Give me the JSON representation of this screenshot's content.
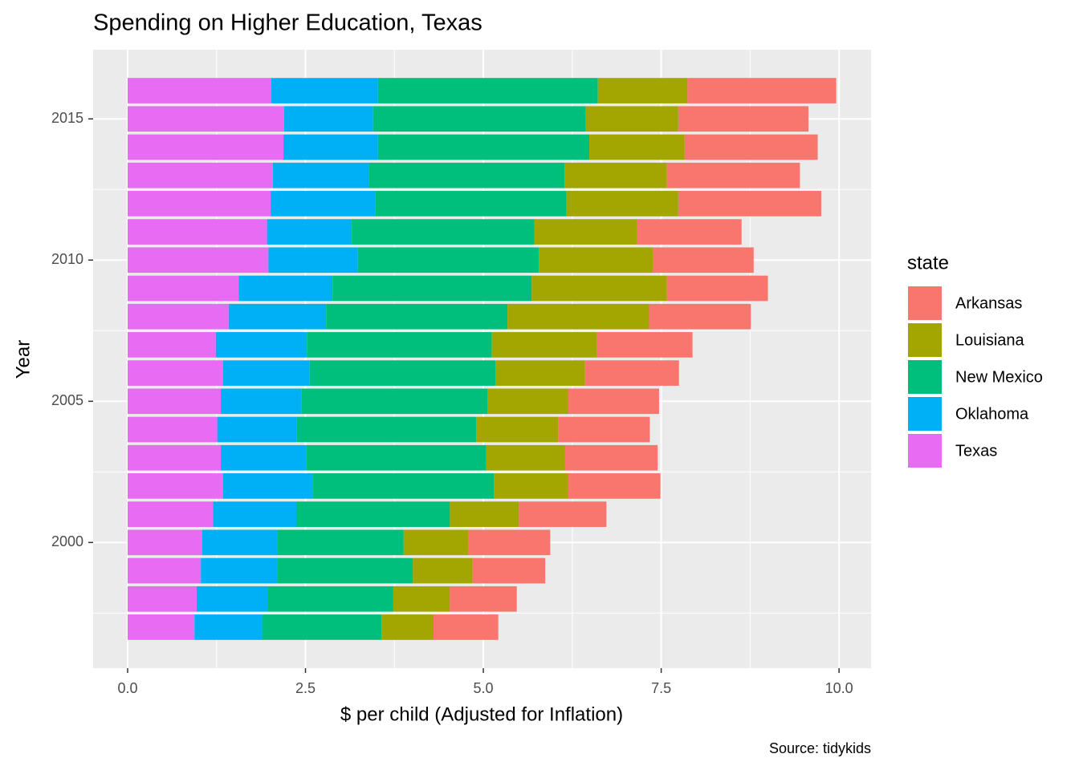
{
  "chart_data": {
    "type": "bar",
    "orientation": "horizontal",
    "stacked": true,
    "title": "Spending on Higher Education, Texas",
    "xlabel": "$ per child (Adjusted for Inflation)",
    "ylabel": "Year",
    "caption": "Source: tidykids",
    "legend_title": "state",
    "legend_position": "right",
    "grid": true,
    "y": [
      1997,
      1998,
      1999,
      2000,
      2001,
      2002,
      2003,
      2004,
      2005,
      2006,
      2007,
      2008,
      2009,
      2010,
      2011,
      2012,
      2013,
      2014,
      2015,
      2016
    ],
    "ylim": [
      1995.55,
      2017.45
    ],
    "yticks": [
      2000,
      2005,
      2010,
      2015
    ],
    "xlim": [
      -0.485,
      10.45
    ],
    "xticks": [
      {
        "value": 0,
        "label": "0.0"
      },
      {
        "value": 2.5,
        "label": "2.5"
      },
      {
        "value": 5,
        "label": "5.0"
      },
      {
        "value": 7.5,
        "label": "7.5"
      },
      {
        "value": 10,
        "label": "10.0"
      }
    ],
    "series": [
      {
        "name": "Arkansas",
        "color": "#f8766d",
        "values": [
          0.91,
          0.94,
          1.02,
          1.15,
          1.23,
          1.3,
          1.3,
          1.29,
          1.28,
          1.32,
          1.34,
          1.43,
          1.42,
          1.42,
          1.47,
          2.01,
          1.87,
          1.87,
          1.83,
          2.09
        ]
      },
      {
        "name": "Louisiana",
        "color": "#a3a500",
        "values": [
          0.73,
          0.8,
          0.84,
          0.91,
          0.97,
          1.04,
          1.11,
          1.15,
          1.13,
          1.26,
          1.48,
          1.99,
          1.9,
          1.6,
          1.44,
          1.57,
          1.44,
          1.34,
          1.3,
          1.26
        ]
      },
      {
        "name": "New Mexico",
        "color": "#00bf7d",
        "values": [
          1.68,
          1.76,
          1.9,
          1.77,
          2.16,
          2.55,
          2.53,
          2.52,
          2.62,
          2.61,
          2.6,
          2.55,
          2.8,
          2.55,
          2.57,
          2.69,
          2.75,
          2.97,
          2.99,
          3.09
        ]
      },
      {
        "name": "Oklahoma",
        "color": "#00b0f6",
        "values": [
          0.95,
          1.0,
          1.08,
          1.06,
          1.17,
          1.26,
          1.2,
          1.12,
          1.13,
          1.22,
          1.28,
          1.37,
          1.32,
          1.25,
          1.19,
          1.47,
          1.35,
          1.33,
          1.25,
          1.5
        ]
      },
      {
        "name": "Texas",
        "color": "#e76bf3",
        "values": [
          0.94,
          0.97,
          1.03,
          1.05,
          1.2,
          1.34,
          1.31,
          1.26,
          1.31,
          1.34,
          1.24,
          1.42,
          1.56,
          1.98,
          1.96,
          2.01,
          2.04,
          2.19,
          2.2,
          2.02
        ]
      }
    ]
  }
}
